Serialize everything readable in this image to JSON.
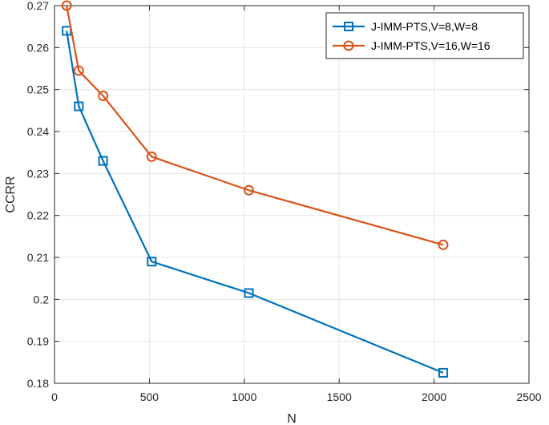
{
  "chart_data": {
    "type": "line",
    "title": "",
    "xlabel": "N",
    "ylabel": "CCRR",
    "xlim": [
      0,
      2500
    ],
    "ylim": [
      0.18,
      0.27
    ],
    "xticks": [
      "0",
      "500",
      "1000",
      "1500",
      "2000",
      "2500"
    ],
    "yticks": [
      "0.18",
      "0.19",
      "0.2",
      "0.21",
      "0.22",
      "0.23",
      "0.24",
      "0.25",
      "0.26",
      "0.27"
    ],
    "grid": true,
    "legend_position": "top-right",
    "series": [
      {
        "name": "J-IMM-PTS,V=8,W=8",
        "color": "#0072BD",
        "marker": "square",
        "x": [
          64,
          128,
          256,
          512,
          1024,
          2048
        ],
        "y": [
          0.264,
          0.246,
          0.233,
          0.209,
          0.2015,
          0.1825
        ]
      },
      {
        "name": "J-IMM-PTS,V=16,W=16",
        "color": "#D95319",
        "marker": "circle",
        "x": [
          64,
          128,
          256,
          512,
          1024,
          2048
        ],
        "y": [
          0.27,
          0.2545,
          0.2485,
          0.234,
          0.226,
          0.213
        ]
      }
    ]
  }
}
